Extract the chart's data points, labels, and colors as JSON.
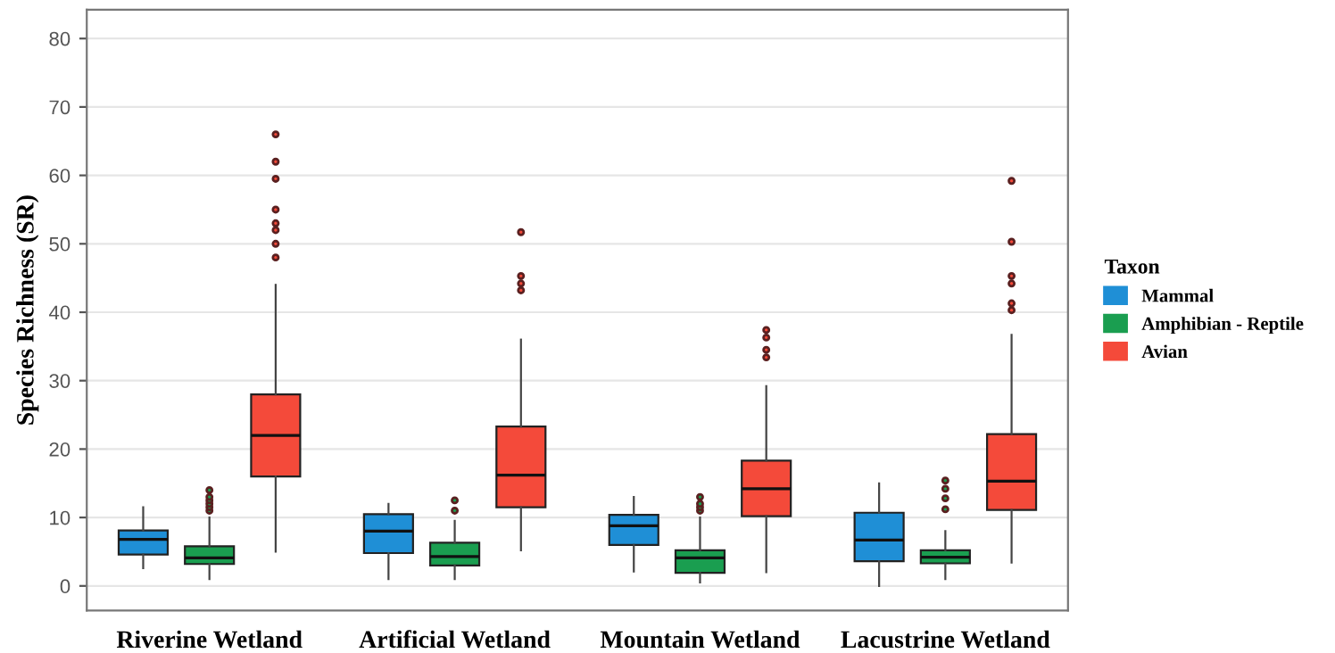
{
  "chart_data": {
    "type": "box",
    "ylabel": "Species Richness (SR)",
    "categories": [
      "Riverine Wetland",
      "Artificial Wetland",
      "Mountain Wetland",
      "Lacustrine Wetland"
    ],
    "ylim": [
      -3.6,
      84.2
    ],
    "yticks": [
      0,
      10,
      20,
      30,
      40,
      50,
      60,
      70,
      80
    ],
    "grid": "y",
    "legend": "right",
    "legend_title": "Taxon",
    "series": [
      {
        "name": "Mammal",
        "color": "#1f8fd6",
        "boxes": [
          {
            "low": 2.6,
            "q1": 4.6,
            "median": 6.8,
            "q3": 8.1,
            "high": 11.5
          },
          {
            "low": 1,
            "q1": 4.8,
            "median": 8,
            "q3": 10.5,
            "high": 12
          },
          {
            "low": 2.1,
            "q1": 6,
            "median": 8.8,
            "q3": 10.4,
            "high": 13
          },
          {
            "low": 0,
            "q1": 3.6,
            "median": 6.7,
            "q3": 10.7,
            "high": 15
          }
        ]
      },
      {
        "name": "Amphibian - Reptile",
        "color": "#1a9e50",
        "boxes": [
          {
            "low": 1,
            "q1": 3.2,
            "median": 4.1,
            "q3": 5.8,
            "high": 10,
            "outliers": [
              11,
              11.5,
              12,
              12.5,
              13,
              14
            ]
          },
          {
            "low": 1,
            "q1": 3,
            "median": 4.3,
            "q3": 6.3,
            "high": 9.5,
            "outliers": [
              11,
              12.5
            ]
          },
          {
            "low": 0.5,
            "q1": 1.9,
            "median": 4.1,
            "q3": 5.2,
            "high": 10,
            "outliers": [
              11,
              11.5,
              12,
              13
            ]
          },
          {
            "low": 1,
            "q1": 3.3,
            "median": 4.2,
            "q3": 5.2,
            "high": 8,
            "outliers": [
              11.2,
              12.8,
              14.2,
              15.4
            ]
          }
        ]
      },
      {
        "name": "Avian",
        "color": "#f44a3a",
        "boxes": [
          {
            "low": 5,
            "q1": 16,
            "median": 22,
            "q3": 28,
            "high": 44,
            "outliers": [
              48,
              50,
              52,
              53,
              55,
              59.5,
              62,
              66
            ]
          },
          {
            "low": 5.2,
            "q1": 11.5,
            "median": 16.2,
            "q3": 23.3,
            "high": 36,
            "outliers": [
              43.2,
              44.2,
              45.3,
              51.7
            ]
          },
          {
            "low": 2,
            "q1": 10.2,
            "median": 14.2,
            "q3": 18.3,
            "high": 29.2,
            "outliers": [
              33.4,
              34.5,
              36.3,
              37.4
            ]
          },
          {
            "low": 3.4,
            "q1": 11.1,
            "median": 15.3,
            "q3": 22.2,
            "high": 36.7,
            "outliers": [
              40.3,
              41.3,
              44.2,
              45.3,
              50.3,
              59.2
            ]
          }
        ]
      }
    ]
  }
}
